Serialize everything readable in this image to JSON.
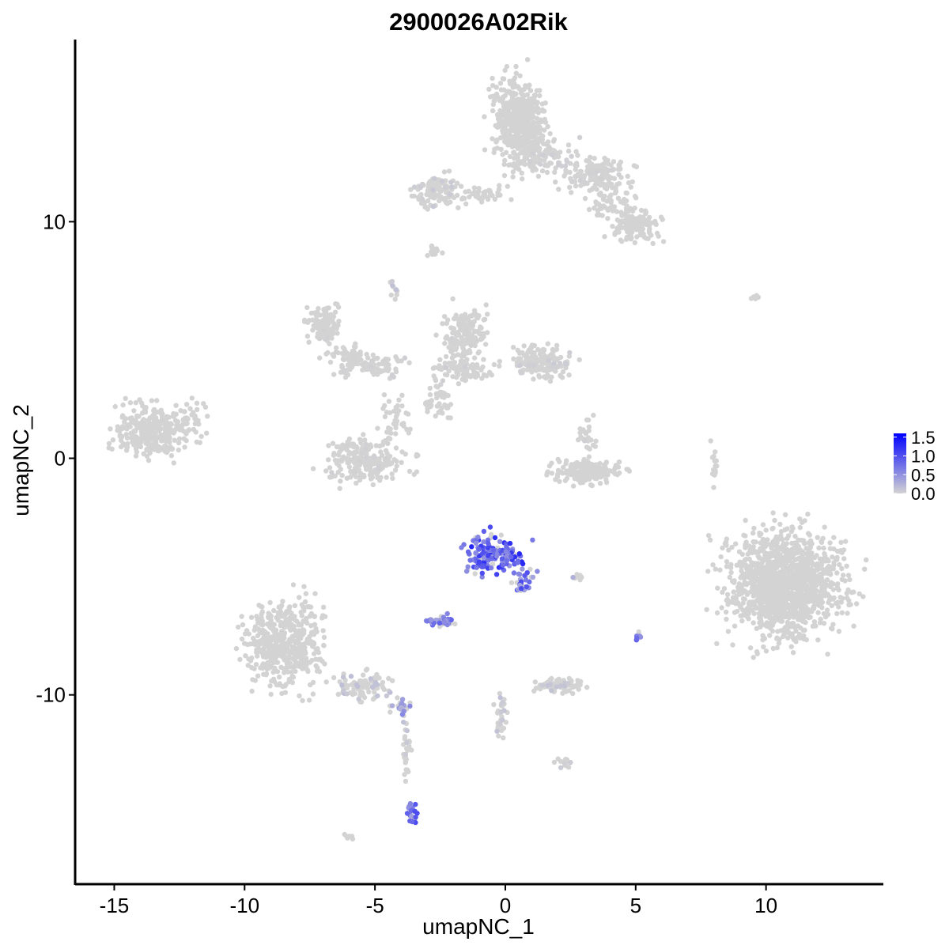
{
  "chart_data": {
    "type": "scatter",
    "title": "2900026A02Rik",
    "xlabel": "umapNC_1",
    "ylabel": "umapNC_2",
    "xlim": [
      -16.5,
      14.5
    ],
    "ylim": [
      -18.0,
      17.7
    ],
    "xticks": [
      -15,
      -10,
      -5,
      0,
      5,
      10
    ],
    "yticks": [
      -10,
      0,
      10
    ],
    "xtick_labels": [
      "-15",
      "-10",
      "-5",
      "0",
      "5",
      "10"
    ],
    "ytick_labels": [
      "-10",
      "0",
      "10"
    ],
    "grid": false,
    "legend": {
      "position": "right",
      "type": "colorbar",
      "ticks": [
        "1.5",
        "1.0",
        "0.5",
        "0.0"
      ],
      "range": [
        0.0,
        1.6
      ]
    },
    "colors": {
      "low": "#d3d3d3",
      "high": "#0000ff"
    },
    "clusters": [
      {
        "cx": 0.5,
        "cy": 14.3,
        "rx": 0.9,
        "ry": 1.5,
        "n": 520,
        "expr": 0.0
      },
      {
        "cx": 1.2,
        "cy": 12.8,
        "rx": 1.3,
        "ry": 0.7,
        "n": 120,
        "expr": 0.03
      },
      {
        "cx": 3.5,
        "cy": 12.0,
        "rx": 1.1,
        "ry": 0.6,
        "n": 160,
        "expr": 0.02
      },
      {
        "cx": 5.0,
        "cy": 9.8,
        "rx": 0.8,
        "ry": 0.6,
        "n": 140,
        "expr": 0.0
      },
      {
        "cx": 4.0,
        "cy": 10.8,
        "rx": 0.8,
        "ry": 0.6,
        "n": 60,
        "expr": 0.01
      },
      {
        "cx": -2.6,
        "cy": 11.3,
        "rx": 0.8,
        "ry": 0.6,
        "n": 110,
        "expr": 0.05
      },
      {
        "cx": -1.0,
        "cy": 11.2,
        "rx": 0.9,
        "ry": 0.3,
        "n": 45,
        "expr": 0.02
      },
      {
        "cx": -2.7,
        "cy": 8.8,
        "rx": 0.2,
        "ry": 0.3,
        "n": 14,
        "expr": 0.0
      },
      {
        "cx": -7.0,
        "cy": 5.6,
        "rx": 0.6,
        "ry": 0.7,
        "n": 110,
        "expr": 0.01
      },
      {
        "cx": -6.0,
        "cy": 4.2,
        "rx": 0.7,
        "ry": 0.6,
        "n": 70,
        "expr": 0.01
      },
      {
        "cx": -4.7,
        "cy": 3.9,
        "rx": 0.8,
        "ry": 0.4,
        "n": 55,
        "expr": 0.02
      },
      {
        "cx": -1.5,
        "cy": 5.3,
        "rx": 0.7,
        "ry": 0.9,
        "n": 150,
        "expr": 0.01
      },
      {
        "cx": -1.7,
        "cy": 3.7,
        "rx": 0.9,
        "ry": 0.5,
        "n": 90,
        "expr": 0.03
      },
      {
        "cx": 1.4,
        "cy": 4.1,
        "rx": 1.1,
        "ry": 0.6,
        "n": 170,
        "expr": 0.04
      },
      {
        "cx": -2.6,
        "cy": 2.6,
        "rx": 0.5,
        "ry": 0.8,
        "n": 50,
        "expr": 0.0
      },
      {
        "cx": -4.3,
        "cy": 1.6,
        "rx": 0.5,
        "ry": 1.0,
        "n": 40,
        "expr": 0.0
      },
      {
        "cx": -5.4,
        "cy": -0.1,
        "rx": 1.4,
        "ry": 0.8,
        "n": 230,
        "expr": 0.02
      },
      {
        "cx": -13.6,
        "cy": 1.1,
        "rx": 1.2,
        "ry": 0.9,
        "n": 300,
        "expr": 0.0
      },
      {
        "cx": -12.0,
        "cy": 1.7,
        "rx": 0.6,
        "ry": 0.8,
        "n": 40,
        "expr": 0.0
      },
      {
        "cx": 3.2,
        "cy": -0.6,
        "rx": 1.2,
        "ry": 0.4,
        "n": 170,
        "expr": 0.0
      },
      {
        "cx": 3.1,
        "cy": 0.8,
        "rx": 0.3,
        "ry": 0.8,
        "n": 30,
        "expr": 0.02
      },
      {
        "cx": 10.7,
        "cy": -5.3,
        "rx": 1.9,
        "ry": 2.0,
        "n": 1300,
        "expr": 0.0
      },
      {
        "cx": -0.5,
        "cy": -4.0,
        "rx": 0.9,
        "ry": 0.8,
        "n": 170,
        "expr": 0.9
      },
      {
        "cx": 0.7,
        "cy": -5.2,
        "rx": 0.4,
        "ry": 0.5,
        "n": 30,
        "expr": 0.7
      },
      {
        "cx": -2.5,
        "cy": -6.9,
        "rx": 0.5,
        "ry": 0.2,
        "n": 40,
        "expr": 0.6
      },
      {
        "cx": 2.8,
        "cy": -5.0,
        "rx": 0.3,
        "ry": 0.1,
        "n": 10,
        "expr": 0.4
      },
      {
        "cx": -8.5,
        "cy": -7.8,
        "rx": 1.3,
        "ry": 1.5,
        "n": 470,
        "expr": 0.0
      },
      {
        "cx": -5.5,
        "cy": -9.6,
        "rx": 0.9,
        "ry": 0.5,
        "n": 90,
        "expr": 0.12
      },
      {
        "cx": -4.0,
        "cy": -10.5,
        "rx": 0.4,
        "ry": 0.3,
        "n": 25,
        "expr": 0.4
      },
      {
        "cx": -3.8,
        "cy": -12.4,
        "rx": 0.15,
        "ry": 1.2,
        "n": 30,
        "expr": 0.1
      },
      {
        "cx": -3.6,
        "cy": -15.0,
        "rx": 0.2,
        "ry": 0.4,
        "n": 20,
        "expr": 0.7
      },
      {
        "cx": 2.2,
        "cy": -9.6,
        "rx": 0.8,
        "ry": 0.3,
        "n": 70,
        "expr": 0.08
      },
      {
        "cx": 2.3,
        "cy": -12.8,
        "rx": 0.3,
        "ry": 0.2,
        "n": 14,
        "expr": 0.05
      },
      {
        "cx": -0.2,
        "cy": -10.8,
        "rx": 0.2,
        "ry": 0.9,
        "n": 30,
        "expr": 0.1
      },
      {
        "cx": 5.1,
        "cy": -7.5,
        "rx": 0.1,
        "ry": 0.3,
        "n": 8,
        "expr": 0.6
      },
      {
        "cx": -6.0,
        "cy": -16.0,
        "rx": 0.2,
        "ry": 0.1,
        "n": 6,
        "expr": 0.0
      },
      {
        "cx": 8.0,
        "cy": -0.5,
        "rx": 0.15,
        "ry": 0.9,
        "n": 14,
        "expr": 0.0
      },
      {
        "cx": 9.6,
        "cy": 6.8,
        "rx": 0.2,
        "ry": 0.1,
        "n": 6,
        "expr": 0.0
      },
      {
        "cx": -4.3,
        "cy": 7.2,
        "rx": 0.2,
        "ry": 0.4,
        "n": 10,
        "expr": 0.1
      }
    ]
  }
}
